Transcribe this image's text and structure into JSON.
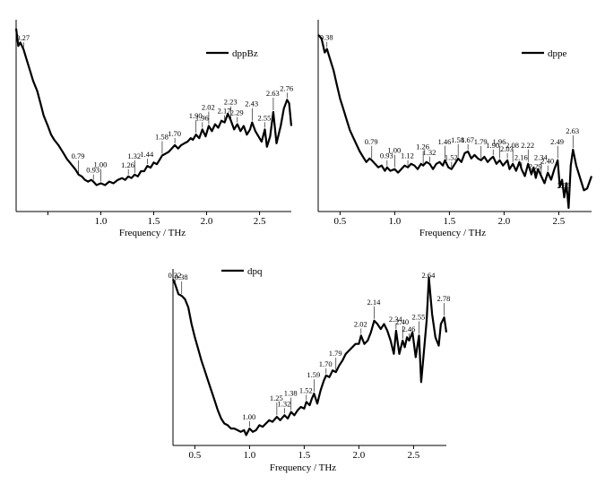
{
  "chart_data": [
    {
      "type": "line",
      "series": [
        {
          "name": "dppBz"
        }
      ],
      "xlabel": "Frequency / THz",
      "xlim": [
        0.2,
        2.8
      ],
      "ylim": [
        0,
        1
      ],
      "xticks": [
        "1.0",
        "1.5",
        "2.0",
        "2.5"
      ],
      "peaks": [
        {
          "x": 0.27,
          "label": "0.27"
        },
        {
          "x": 0.79,
          "label": "0.79"
        },
        {
          "x": 0.93,
          "label": "0.93"
        },
        {
          "x": 1.0,
          "label": "1.00"
        },
        {
          "x": 1.26,
          "label": "1.26"
        },
        {
          "x": 1.32,
          "label": "1.32"
        },
        {
          "x": 1.44,
          "label": "1.44"
        },
        {
          "x": 1.58,
          "label": "1.58"
        },
        {
          "x": 1.7,
          "label": "1.70"
        },
        {
          "x": 1.9,
          "label": "1.90"
        },
        {
          "x": 1.96,
          "label": "1.96"
        },
        {
          "x": 2.02,
          "label": "2.02"
        },
        {
          "x": 2.17,
          "label": "2.17"
        },
        {
          "x": 2.23,
          "label": "2.23"
        },
        {
          "x": 2.29,
          "label": "2.29"
        },
        {
          "x": 2.43,
          "label": "2.43"
        },
        {
          "x": 2.55,
          "label": "2.55"
        },
        {
          "x": 2.63,
          "label": "2.63"
        },
        {
          "x": 2.76,
          "label": "2.76"
        }
      ],
      "points": [
        [
          0.2,
          0.98
        ],
        [
          0.22,
          0.88
        ],
        [
          0.24,
          0.9
        ],
        [
          0.27,
          0.86
        ],
        [
          0.3,
          0.8
        ],
        [
          0.33,
          0.74
        ],
        [
          0.36,
          0.68
        ],
        [
          0.4,
          0.62
        ],
        [
          0.43,
          0.55
        ],
        [
          0.46,
          0.48
        ],
        [
          0.5,
          0.42
        ],
        [
          0.53,
          0.37
        ],
        [
          0.56,
          0.34
        ],
        [
          0.6,
          0.31
        ],
        [
          0.64,
          0.27
        ],
        [
          0.68,
          0.23
        ],
        [
          0.72,
          0.2
        ],
        [
          0.76,
          0.17
        ],
        [
          0.79,
          0.14
        ],
        [
          0.82,
          0.13
        ],
        [
          0.85,
          0.11
        ],
        [
          0.88,
          0.1
        ],
        [
          0.91,
          0.11
        ],
        [
          0.93,
          0.1
        ],
        [
          0.96,
          0.08
        ],
        [
          1.0,
          0.09
        ],
        [
          1.04,
          0.08
        ],
        [
          1.08,
          0.1
        ],
        [
          1.12,
          0.09
        ],
        [
          1.16,
          0.11
        ],
        [
          1.2,
          0.12
        ],
        [
          1.23,
          0.11
        ],
        [
          1.26,
          0.13
        ],
        [
          1.29,
          0.12
        ],
        [
          1.32,
          0.14
        ],
        [
          1.35,
          0.13
        ],
        [
          1.38,
          0.16
        ],
        [
          1.41,
          0.16
        ],
        [
          1.44,
          0.19
        ],
        [
          1.47,
          0.18
        ],
        [
          1.5,
          0.21
        ],
        [
          1.53,
          0.2
        ],
        [
          1.56,
          0.23
        ],
        [
          1.58,
          0.25
        ],
        [
          1.61,
          0.26
        ],
        [
          1.64,
          0.27
        ],
        [
          1.67,
          0.29
        ],
        [
          1.7,
          0.31
        ],
        [
          1.73,
          0.29
        ],
        [
          1.76,
          0.31
        ],
        [
          1.79,
          0.32
        ],
        [
          1.82,
          0.33
        ],
        [
          1.85,
          0.35
        ],
        [
          1.87,
          0.34
        ],
        [
          1.9,
          0.37
        ],
        [
          1.93,
          0.35
        ],
        [
          1.96,
          0.4
        ],
        [
          1.99,
          0.36
        ],
        [
          2.02,
          0.42
        ],
        [
          2.05,
          0.39
        ],
        [
          2.08,
          0.43
        ],
        [
          2.11,
          0.41
        ],
        [
          2.14,
          0.45
        ],
        [
          2.17,
          0.44
        ],
        [
          2.2,
          0.49
        ],
        [
          2.23,
          0.45
        ],
        [
          2.26,
          0.4
        ],
        [
          2.29,
          0.43
        ],
        [
          2.32,
          0.39
        ],
        [
          2.35,
          0.42
        ],
        [
          2.38,
          0.37
        ],
        [
          2.41,
          0.4
        ],
        [
          2.43,
          0.44
        ],
        [
          2.46,
          0.39
        ],
        [
          2.49,
          0.36
        ],
        [
          2.52,
          0.33
        ],
        [
          2.55,
          0.4
        ],
        [
          2.57,
          0.3
        ],
        [
          2.6,
          0.36
        ],
        [
          2.63,
          0.5
        ],
        [
          2.66,
          0.32
        ],
        [
          2.7,
          0.42
        ],
        [
          2.73,
          0.52
        ],
        [
          2.76,
          0.57
        ],
        [
          2.78,
          0.55
        ],
        [
          2.8,
          0.42
        ]
      ]
    },
    {
      "type": "line",
      "series": [
        {
          "name": "dppe"
        }
      ],
      "xlabel": "Frequency / THz",
      "xlim": [
        0.3,
        2.8
      ],
      "ylim": [
        0,
        1
      ],
      "xticks": [
        "0.5",
        "1.0",
        "1.5",
        "2.0",
        "2.5"
      ],
      "peaks": [
        {
          "x": 0.38,
          "label": "0.38"
        },
        {
          "x": 0.79,
          "label": "0.79"
        },
        {
          "x": 0.93,
          "label": "0.93"
        },
        {
          "x": 1.0,
          "label": "1.00"
        },
        {
          "x": 1.12,
          "label": "1.12"
        },
        {
          "x": 1.26,
          "label": "1.26"
        },
        {
          "x": 1.32,
          "label": "1.32"
        },
        {
          "x": 1.46,
          "label": "1.46"
        },
        {
          "x": 1.52,
          "label": "1.52"
        },
        {
          "x": 1.58,
          "label": "1.58"
        },
        {
          "x": 1.67,
          "label": "1.67"
        },
        {
          "x": 1.79,
          "label": "1.79"
        },
        {
          "x": 1.9,
          "label": "1.90"
        },
        {
          "x": 1.96,
          "label": "1.96"
        },
        {
          "x": 2.03,
          "label": "2.03"
        },
        {
          "x": 2.08,
          "label": "2.08"
        },
        {
          "x": 2.16,
          "label": "2.16"
        },
        {
          "x": 2.22,
          "label": "2.22"
        },
        {
          "x": 2.29,
          "label": "2.29"
        },
        {
          "x": 2.34,
          "label": "2.34"
        },
        {
          "x": 2.4,
          "label": "2.40"
        },
        {
          "x": 2.49,
          "label": "2.49"
        },
        {
          "x": 2.55,
          "label": "2.55"
        },
        {
          "x": 2.63,
          "label": "2.63"
        }
      ],
      "points": [
        [
          0.3,
          0.98
        ],
        [
          0.33,
          0.96
        ],
        [
          0.36,
          0.88
        ],
        [
          0.38,
          0.9
        ],
        [
          0.41,
          0.84
        ],
        [
          0.44,
          0.78
        ],
        [
          0.47,
          0.7
        ],
        [
          0.5,
          0.62
        ],
        [
          0.53,
          0.56
        ],
        [
          0.56,
          0.5
        ],
        [
          0.59,
          0.44
        ],
        [
          0.62,
          0.4
        ],
        [
          0.65,
          0.36
        ],
        [
          0.68,
          0.32
        ],
        [
          0.71,
          0.29
        ],
        [
          0.74,
          0.26
        ],
        [
          0.77,
          0.28
        ],
        [
          0.79,
          0.27
        ],
        [
          0.82,
          0.25
        ],
        [
          0.85,
          0.23
        ],
        [
          0.88,
          0.24
        ],
        [
          0.91,
          0.21
        ],
        [
          0.93,
          0.23
        ],
        [
          0.96,
          0.21
        ],
        [
          1.0,
          0.22
        ],
        [
          1.03,
          0.2
        ],
        [
          1.06,
          0.22
        ],
        [
          1.09,
          0.24
        ],
        [
          1.12,
          0.23
        ],
        [
          1.15,
          0.25
        ],
        [
          1.18,
          0.24
        ],
        [
          1.21,
          0.22
        ],
        [
          1.24,
          0.25
        ],
        [
          1.26,
          0.24
        ],
        [
          1.29,
          0.26
        ],
        [
          1.32,
          0.25
        ],
        [
          1.35,
          0.22
        ],
        [
          1.38,
          0.25
        ],
        [
          1.41,
          0.26
        ],
        [
          1.44,
          0.24
        ],
        [
          1.46,
          0.27
        ],
        [
          1.49,
          0.23
        ],
        [
          1.52,
          0.22
        ],
        [
          1.55,
          0.25
        ],
        [
          1.58,
          0.28
        ],
        [
          1.61,
          0.26
        ],
        [
          1.64,
          0.31
        ],
        [
          1.67,
          0.32
        ],
        [
          1.7,
          0.28
        ],
        [
          1.73,
          0.3
        ],
        [
          1.76,
          0.28
        ],
        [
          1.79,
          0.27
        ],
        [
          1.82,
          0.29
        ],
        [
          1.85,
          0.26
        ],
        [
          1.88,
          0.28
        ],
        [
          1.9,
          0.29
        ],
        [
          1.93,
          0.25
        ],
        [
          1.96,
          0.27
        ],
        [
          1.99,
          0.24
        ],
        [
          2.03,
          0.27
        ],
        [
          2.05,
          0.22
        ],
        [
          2.08,
          0.25
        ],
        [
          2.11,
          0.21
        ],
        [
          2.14,
          0.26
        ],
        [
          2.16,
          0.22
        ],
        [
          2.19,
          0.18
        ],
        [
          2.22,
          0.25
        ],
        [
          2.25,
          0.19
        ],
        [
          2.27,
          0.23
        ],
        [
          2.29,
          0.17
        ],
        [
          2.31,
          0.22
        ],
        [
          2.34,
          0.18
        ],
        [
          2.37,
          0.14
        ],
        [
          2.4,
          0.2
        ],
        [
          2.43,
          0.16
        ],
        [
          2.46,
          0.22
        ],
        [
          2.49,
          0.27
        ],
        [
          2.51,
          0.12
        ],
        [
          2.53,
          0.16
        ],
        [
          2.55,
          0.06
        ],
        [
          2.57,
          0.14
        ],
        [
          2.59,
          0.0
        ],
        [
          2.61,
          0.24
        ],
        [
          2.63,
          0.33
        ],
        [
          2.66,
          0.24
        ],
        [
          2.7,
          0.16
        ],
        [
          2.73,
          0.1
        ],
        [
          2.76,
          0.11
        ],
        [
          2.8,
          0.18
        ]
      ]
    },
    {
      "type": "line",
      "series": [
        {
          "name": "dpq"
        }
      ],
      "xlabel": "Frequency / THz",
      "xlim": [
        0.3,
        2.8
      ],
      "ylim": [
        0,
        1
      ],
      "xticks": [
        "0.5",
        "1.0",
        "1.5",
        "2.0",
        "2.5"
      ],
      "peaks": [
        {
          "x": 0.32,
          "label": "0.32"
        },
        {
          "x": 0.38,
          "label": "0.38"
        },
        {
          "x": 1.0,
          "label": "1.00"
        },
        {
          "x": 1.25,
          "label": "1.25"
        },
        {
          "x": 1.32,
          "label": "1.32"
        },
        {
          "x": 1.38,
          "label": "1.38"
        },
        {
          "x": 1.52,
          "label": "1.52"
        },
        {
          "x": 1.59,
          "label": "1.59"
        },
        {
          "x": 1.7,
          "label": "1.70"
        },
        {
          "x": 1.79,
          "label": "1.79"
        },
        {
          "x": 2.02,
          "label": "2.02"
        },
        {
          "x": 2.14,
          "label": "2.14"
        },
        {
          "x": 2.34,
          "label": "2.34"
        },
        {
          "x": 2.4,
          "label": "2.40"
        },
        {
          "x": 2.46,
          "label": "2.46"
        },
        {
          "x": 2.55,
          "label": "2.55"
        },
        {
          "x": 2.64,
          "label": "2.64"
        },
        {
          "x": 2.78,
          "label": "2.78"
        }
      ],
      "points": [
        [
          0.3,
          0.97
        ],
        [
          0.32,
          0.94
        ],
        [
          0.35,
          0.88
        ],
        [
          0.38,
          0.87
        ],
        [
          0.41,
          0.85
        ],
        [
          0.44,
          0.8
        ],
        [
          0.47,
          0.7
        ],
        [
          0.5,
          0.62
        ],
        [
          0.53,
          0.55
        ],
        [
          0.56,
          0.48
        ],
        [
          0.59,
          0.42
        ],
        [
          0.62,
          0.36
        ],
        [
          0.65,
          0.3
        ],
        [
          0.68,
          0.24
        ],
        [
          0.71,
          0.18
        ],
        [
          0.74,
          0.13
        ],
        [
          0.77,
          0.1
        ],
        [
          0.8,
          0.09
        ],
        [
          0.83,
          0.07
        ],
        [
          0.86,
          0.07
        ],
        [
          0.89,
          0.06
        ],
        [
          0.92,
          0.05
        ],
        [
          0.95,
          0.06
        ],
        [
          0.97,
          0.03
        ],
        [
          1.0,
          0.07
        ],
        [
          1.03,
          0.05
        ],
        [
          1.06,
          0.06
        ],
        [
          1.09,
          0.09
        ],
        [
          1.12,
          0.08
        ],
        [
          1.15,
          0.1
        ],
        [
          1.18,
          0.12
        ],
        [
          1.21,
          0.11
        ],
        [
          1.25,
          0.14
        ],
        [
          1.28,
          0.12
        ],
        [
          1.32,
          0.15
        ],
        [
          1.35,
          0.13
        ],
        [
          1.38,
          0.17
        ],
        [
          1.41,
          0.15
        ],
        [
          1.44,
          0.18
        ],
        [
          1.47,
          0.2
        ],
        [
          1.5,
          0.19
        ],
        [
          1.52,
          0.23
        ],
        [
          1.55,
          0.21
        ],
        [
          1.57,
          0.25
        ],
        [
          1.59,
          0.28
        ],
        [
          1.62,
          0.22
        ],
        [
          1.65,
          0.3
        ],
        [
          1.68,
          0.36
        ],
        [
          1.7,
          0.39
        ],
        [
          1.73,
          0.38
        ],
        [
          1.76,
          0.42
        ],
        [
          1.79,
          0.41
        ],
        [
          1.82,
          0.45
        ],
        [
          1.85,
          0.48
        ],
        [
          1.88,
          0.52
        ],
        [
          1.91,
          0.54
        ],
        [
          1.94,
          0.56
        ],
        [
          1.97,
          0.58
        ],
        [
          2.0,
          0.58
        ],
        [
          2.02,
          0.63
        ],
        [
          2.05,
          0.58
        ],
        [
          2.08,
          0.6
        ],
        [
          2.11,
          0.65
        ],
        [
          2.14,
          0.72
        ],
        [
          2.17,
          0.7
        ],
        [
          2.2,
          0.67
        ],
        [
          2.23,
          0.7
        ],
        [
          2.26,
          0.66
        ],
        [
          2.29,
          0.6
        ],
        [
          2.32,
          0.52
        ],
        [
          2.34,
          0.66
        ],
        [
          2.37,
          0.52
        ],
        [
          2.4,
          0.6
        ],
        [
          2.42,
          0.56
        ],
        [
          2.44,
          0.62
        ],
        [
          2.46,
          0.6
        ],
        [
          2.49,
          0.65
        ],
        [
          2.52,
          0.5
        ],
        [
          2.55,
          0.63
        ],
        [
          2.57,
          0.35
        ],
        [
          2.59,
          0.5
        ],
        [
          2.62,
          0.72
        ],
        [
          2.64,
          0.98
        ],
        [
          2.67,
          0.76
        ],
        [
          2.7,
          0.62
        ],
        [
          2.73,
          0.57
        ],
        [
          2.75,
          0.7
        ],
        [
          2.78,
          0.74
        ],
        [
          2.8,
          0.65
        ]
      ]
    }
  ]
}
